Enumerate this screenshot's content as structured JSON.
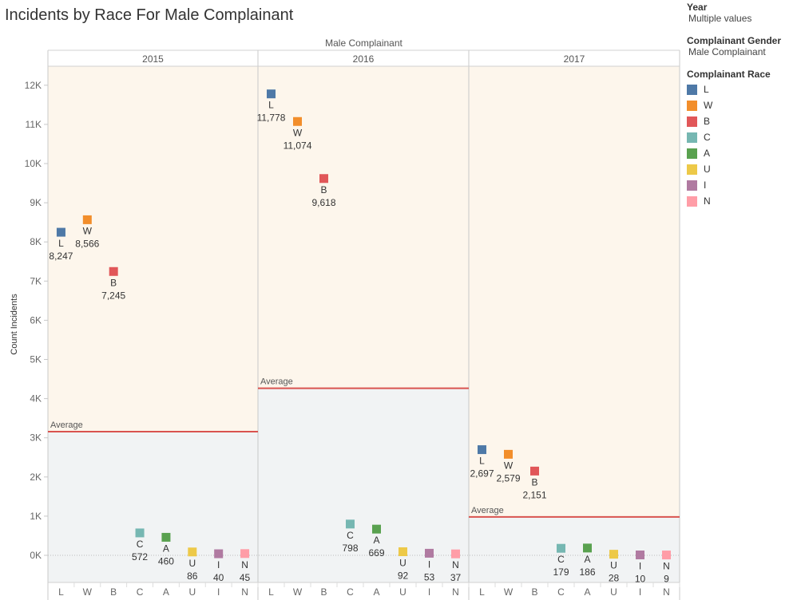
{
  "title": "Incidents by Race For Male Complainant",
  "filters": {
    "year_label": "Year",
    "year_value": "Multiple values",
    "gender_label": "Complainant Gender",
    "gender_value": "Male Complainant",
    "race_label": "Complainant Race"
  },
  "colors": {
    "L": "#4e79a7",
    "W": "#f28e2b",
    "B": "#e15759",
    "C": "#76b7b2",
    "A": "#59a14f",
    "U": "#edc948",
    "I": "#b07aa1",
    "N": "#ff9da7",
    "average_line": "#d9534f"
  },
  "chart_data": {
    "type": "scatter",
    "column_header": "Male Complainant",
    "ylabel": "Count Incidents",
    "ylim": [
      -700,
      12500
    ],
    "yticks": [
      0,
      1000,
      2000,
      3000,
      4000,
      5000,
      6000,
      7000,
      8000,
      9000,
      10000,
      11000,
      12000
    ],
    "ytick_labels": [
      "0K",
      "1K",
      "2K",
      "3K",
      "4K",
      "5K",
      "6K",
      "7K",
      "8K",
      "9K",
      "10K",
      "11K",
      "12K"
    ],
    "categories": [
      "L",
      "W",
      "B",
      "C",
      "A",
      "U",
      "I",
      "N"
    ],
    "reference_line_label": "Average",
    "panels": [
      {
        "year": "2015",
        "values": [
          8247,
          8566,
          7245,
          572,
          460,
          86,
          40,
          45
        ],
        "labels": [
          "8,247",
          "8,566",
          "7,245",
          "572",
          "460",
          "86",
          "40",
          "45"
        ],
        "average": 3158
      },
      {
        "year": "2016",
        "values": [
          11778,
          11074,
          9618,
          798,
          669,
          92,
          53,
          37
        ],
        "labels": [
          "11,778",
          "11,074",
          "9,618",
          "798",
          "669",
          "92",
          "53",
          "37"
        ],
        "average": 4265
      },
      {
        "year": "2017",
        "values": [
          2697,
          2579,
          2151,
          179,
          186,
          28,
          10,
          9
        ],
        "labels": [
          "2,697",
          "2,579",
          "2,151",
          "179",
          "186",
          "28",
          "10",
          "9"
        ],
        "average": 980
      }
    ]
  }
}
